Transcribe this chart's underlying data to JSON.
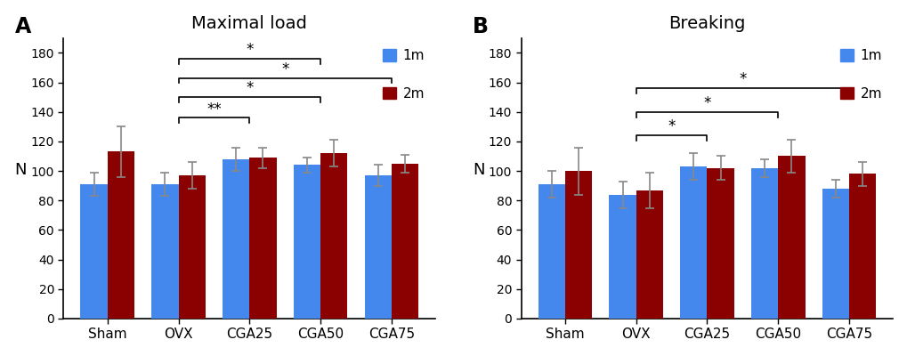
{
  "categories": [
    "Sham",
    "OVX",
    "CGA25",
    "CGA50",
    "CGA75"
  ],
  "panel_A": {
    "title": "Maximal load",
    "label": "A",
    "values_1m": [
      91,
      91,
      108,
      104,
      97
    ],
    "errors_1m": [
      8,
      8,
      8,
      5,
      7
    ],
    "values_2m": [
      113,
      97,
      109,
      112,
      105
    ],
    "errors_2m": [
      17,
      9,
      7,
      9,
      6
    ],
    "significance": [
      {
        "x1_cat": "OVX",
        "x2_cat": "CGA25",
        "y": 136,
        "label": "**"
      },
      {
        "x1_cat": "OVX",
        "x2_cat": "CGA50",
        "y": 150,
        "label": "*"
      },
      {
        "x1_cat": "OVX",
        "x2_cat": "CGA75",
        "y": 163,
        "label": "*"
      },
      {
        "x1_cat": "OVX",
        "x2_cat": "CGA50",
        "y": 176,
        "label": "*"
      }
    ]
  },
  "panel_B": {
    "title": "Breaking",
    "label": "B",
    "values_1m": [
      91,
      84,
      103,
      102,
      88
    ],
    "errors_1m": [
      9,
      9,
      9,
      6,
      6
    ],
    "values_2m": [
      100,
      87,
      102,
      110,
      98
    ],
    "errors_2m": [
      16,
      12,
      8,
      11,
      8
    ],
    "significance": [
      {
        "x1_cat": "OVX",
        "x2_cat": "CGA25",
        "y": 124,
        "label": "*"
      },
      {
        "x1_cat": "OVX",
        "x2_cat": "CGA50",
        "y": 140,
        "label": "*"
      },
      {
        "x1_cat": "OVX",
        "x2_cat": "CGA75",
        "y": 156,
        "label": "*"
      }
    ]
  },
  "bar_width": 0.38,
  "color_1m": "#4488EE",
  "color_2m": "#8B0000",
  "ylabel": "N",
  "ylim": [
    0,
    190
  ],
  "yticks": [
    0,
    20,
    40,
    60,
    80,
    100,
    120,
    140,
    160,
    180
  ],
  "background_color": "#ffffff",
  "error_color": "#888888"
}
